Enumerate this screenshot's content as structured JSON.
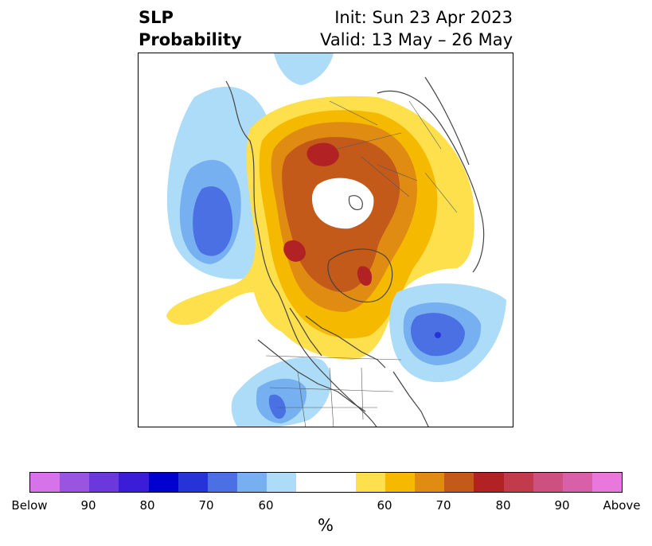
{
  "title": {
    "left_line1": "SLP",
    "left_line2": "Probability",
    "init": "Init: Sun 23 Apr 2023",
    "valid": "Valid: 13 May – 26 May"
  },
  "colorbar": {
    "unit": "%",
    "colors": [
      "#d673e8",
      "#9a55e0",
      "#6a38dc",
      "#3a1cd9",
      "#0000cf",
      "#2633d8",
      "#4a70e4",
      "#76b0f0",
      "#acdcf8",
      "#ffffff",
      "#ffffff",
      "#fee04d",
      "#f5b900",
      "#e08c12",
      "#c45a1a",
      "#b22224",
      "#c23b4c",
      "#cc5080",
      "#d860a8",
      "#e878dc"
    ],
    "labels": [
      "Below",
      "90",
      "80",
      "70",
      "60",
      "60",
      "70",
      "80",
      "90",
      "Above"
    ]
  },
  "map": {
    "projection": "north-polar-stereographic",
    "colors": {
      "lightblue": "#acdcf8",
      "midblue": "#76b0f0",
      "blue": "#4a70e4",
      "darkblue": "#2633d8",
      "yellow": "#fee04d",
      "gold": "#f5b900",
      "orange": "#e08c12",
      "darkorange": "#c45a1a",
      "red": "#b22224",
      "coast": "#444444"
    }
  }
}
